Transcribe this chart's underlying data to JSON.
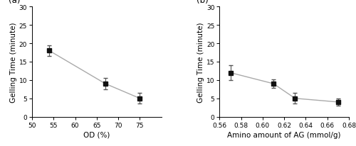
{
  "panel_a": {
    "x": [
      54,
      67,
      75
    ],
    "y": [
      18,
      9,
      5
    ],
    "yerr": [
      1.5,
      1.5,
      1.5
    ],
    "xlabel": "OD (%)",
    "ylabel": "Gelling Time (minute)",
    "xlim": [
      50,
      80
    ],
    "ylim": [
      0,
      30
    ],
    "xticks": [
      50,
      55,
      60,
      65,
      70,
      75
    ],
    "yticks": [
      0,
      5,
      10,
      15,
      20,
      25,
      30
    ],
    "label": "(a)"
  },
  "panel_b": {
    "x": [
      0.57,
      0.61,
      0.63,
      0.67
    ],
    "y": [
      12,
      9,
      5,
      4
    ],
    "yerr": [
      2.0,
      1.2,
      1.5,
      1.0
    ],
    "xlabel": "Amino amount of AG (mmol/g)",
    "ylabel": "Gelling Time (minute)",
    "xlim": [
      0.56,
      0.68
    ],
    "ylim": [
      0,
      30
    ],
    "xticks": [
      0.56,
      0.58,
      0.6,
      0.62,
      0.64,
      0.66,
      0.68
    ],
    "yticks": [
      0,
      5,
      10,
      15,
      20,
      25,
      30
    ],
    "label": "(b)"
  },
  "line_color": "#aaaaaa",
  "marker": "s",
  "marker_color": "#111111",
  "marker_size": 4,
  "ecolor": "#555555",
  "capsize": 2,
  "linewidth": 1.0,
  "elinewidth": 0.8,
  "tick_fontsize": 6.5,
  "label_fontsize": 7.5,
  "panel_label_fontsize": 8.5
}
